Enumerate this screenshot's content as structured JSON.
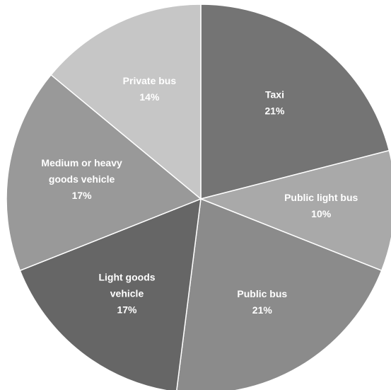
{
  "chart_data": {
    "type": "pie",
    "title": "",
    "slices": [
      {
        "label_lines": [
          "Taxi"
        ],
        "percent_label": "21%",
        "value": 21,
        "color": "#747474"
      },
      {
        "label_lines": [
          "Public light bus"
        ],
        "percent_label": "10%",
        "value": 10,
        "color": "#a9a9a9"
      },
      {
        "label_lines": [
          "Public bus"
        ],
        "percent_label": "21%",
        "value": 21,
        "color": "#8b8b8b"
      },
      {
        "label_lines": [
          "Light goods",
          "vehicle"
        ],
        "percent_label": "17%",
        "value": 17,
        "color": "#666666"
      },
      {
        "label_lines": [
          "Medium or heavy",
          "goods vehicle"
        ],
        "percent_label": "17%",
        "value": 17,
        "color": "#999999"
      },
      {
        "label_lines": [
          "Private bus"
        ],
        "percent_label": "14%",
        "value": 14,
        "color": "#c6c6c6"
      }
    ],
    "start_angle_deg": 0,
    "direction": "clockwise",
    "legend": "none",
    "labels": "inside slices"
  }
}
